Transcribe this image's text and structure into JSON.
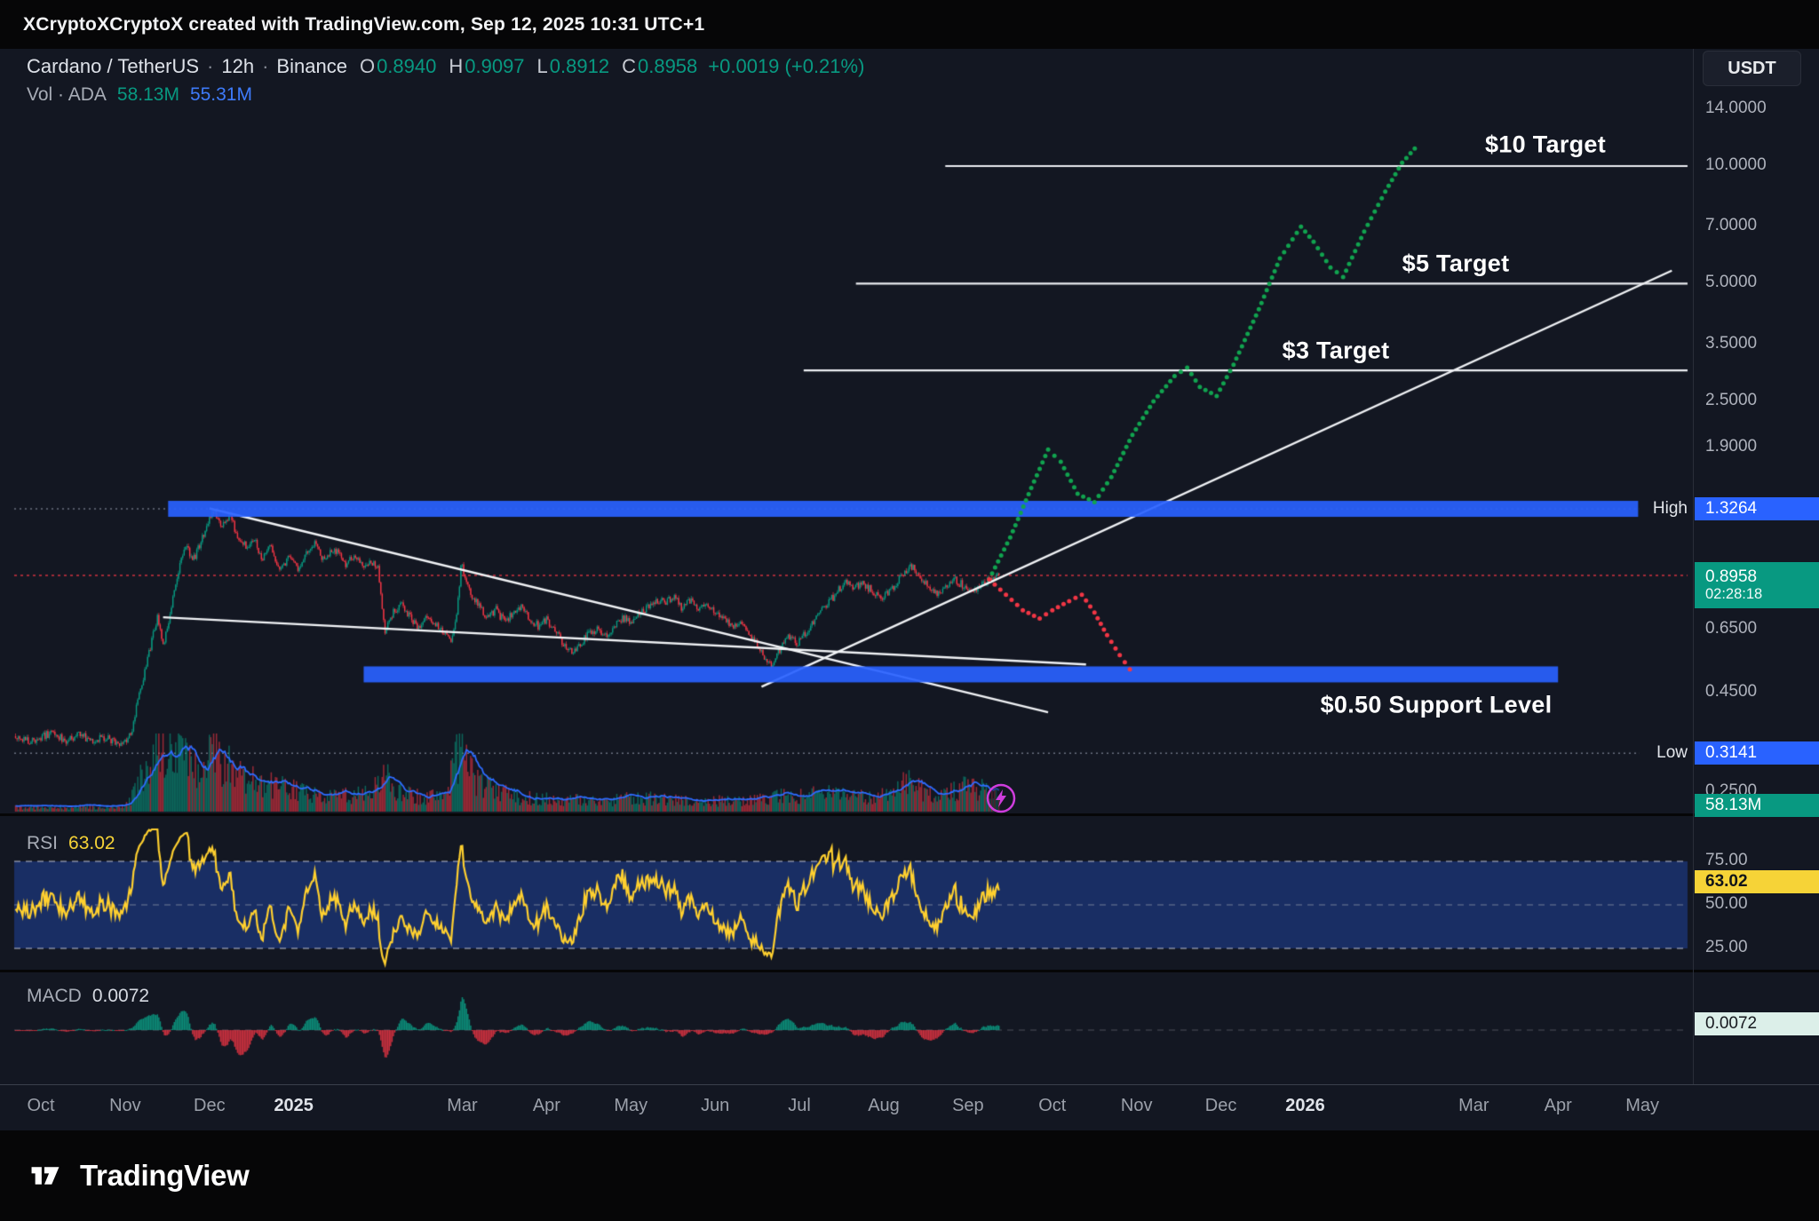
{
  "attribution": {
    "text": "XCryptoXCryptoX created with TradingView.com, Sep 12, 2025 10:31 UTC+1"
  },
  "header": {
    "symbol": "Cardano / TetherUS",
    "separator": "·",
    "interval": "12h",
    "exchange": "Binance",
    "ohlc": [
      {
        "label": "O",
        "value": "0.8940"
      },
      {
        "label": "H",
        "value": "0.9097"
      },
      {
        "label": "L",
        "value": "0.8912"
      },
      {
        "label": "C",
        "value": "0.8958"
      }
    ],
    "change": "+0.0019 (+0.21%)",
    "volume_label": "Vol · ADA",
    "volume_value": "58.13M",
    "volume_ma_value": "55.31M",
    "currency_button": "USDT"
  },
  "annotations": {
    "target_10": "$10 Target",
    "target_5": "$5 Target",
    "target_3": "$3 Target",
    "support": "$0.50 Support Level",
    "high_label": "High",
    "low_label": "Low"
  },
  "price_axis": {
    "plain": [
      {
        "text": "14.0000",
        "value": 14
      },
      {
        "text": "10.0000",
        "value": 10
      },
      {
        "text": "7.0000",
        "value": 7
      },
      {
        "text": "5.0000",
        "value": 5
      },
      {
        "text": "3.5000",
        "value": 3.5
      },
      {
        "text": "2.5000",
        "value": 2.5
      },
      {
        "text": "1.9000",
        "value": 1.9
      },
      {
        "text": "0.6500",
        "value": 0.65
      },
      {
        "text": "0.4500",
        "value": 0.45
      },
      {
        "text": "0.2500",
        "value": 0.25
      }
    ],
    "high_badge": {
      "text": "1.3264",
      "value": 1.3264
    },
    "low_badge": {
      "text": "0.3141",
      "value": 0.3141
    },
    "price_badge": {
      "text": "0.8958",
      "countdown": "02:28:18",
      "value": 0.8958
    },
    "volume_badge": {
      "text": "58.13M"
    }
  },
  "rsi_pane": {
    "title": "RSI",
    "value": "63.02",
    "badge": "63.02",
    "labels": [
      {
        "text": "75.00",
        "value": 75
      },
      {
        "text": "50.00",
        "value": 50
      },
      {
        "text": "25.00",
        "value": 25
      }
    ]
  },
  "macd_pane": {
    "title": "MACD",
    "value": "0.0072",
    "badge": "0.0072"
  },
  "time_axis": [
    {
      "label": "Oct",
      "m": 0
    },
    {
      "label": "Nov",
      "m": 1
    },
    {
      "label": "Dec",
      "m": 2
    },
    {
      "label": "2025",
      "m": 3,
      "bold": true
    },
    {
      "label": "Mar",
      "m": 5
    },
    {
      "label": "Apr",
      "m": 6
    },
    {
      "label": "May",
      "m": 7
    },
    {
      "label": "Jun",
      "m": 8
    },
    {
      "label": "Jul",
      "m": 9
    },
    {
      "label": "Aug",
      "m": 10
    },
    {
      "label": "Sep",
      "m": 11
    },
    {
      "label": "Oct",
      "m": 12
    },
    {
      "label": "Nov",
      "m": 13
    },
    {
      "label": "Dec",
      "m": 14
    },
    {
      "label": "2026",
      "m": 15,
      "bold": true
    },
    {
      "label": "Mar",
      "m": 17
    },
    {
      "label": "Apr",
      "m": 18
    },
    {
      "label": "May",
      "m": 19
    }
  ],
  "footer": {
    "brand": "TradingView"
  },
  "colors": {
    "up": "#089981",
    "down": "#f23645",
    "accent_blue": "#2962ff",
    "rsi_line": "#ffd02f",
    "bull_projection": "#11a34f",
    "bear_projection": "#f23645"
  },
  "chart_data": {
    "type": "candlestick",
    "title": "Cardano / TetherUS · 12h · Binance",
    "scale": "log",
    "current_ohlc": {
      "open": 0.894,
      "high": 0.9097,
      "low": 0.8912,
      "close": 0.8958,
      "change_abs": 0.0019,
      "change_pct": 0.21
    },
    "volume": {
      "current": "58.13M",
      "ma": "55.31M"
    },
    "key_levels": {
      "session_high": 1.3264,
      "session_low": 0.3141,
      "last_price": 0.8958,
      "support": 0.5,
      "targets": [
        3,
        5,
        10
      ]
    },
    "x_axis": {
      "unit": "months since Oct 2024",
      "visible_range": [
        -0.32,
        19.6
      ],
      "last_candle_m": 11.37
    },
    "y_axis": {
      "ticks": [
        14,
        10,
        7,
        5,
        3.5,
        2.5,
        1.9,
        0.65,
        0.45,
        0.25
      ]
    },
    "price_path": [
      [
        -0.9,
        0.355
      ],
      [
        -0.6,
        0.342
      ],
      [
        -0.35,
        0.352
      ],
      [
        -0.15,
        0.338
      ],
      [
        0,
        0.345
      ],
      [
        0.15,
        0.356
      ],
      [
        0.3,
        0.336
      ],
      [
        0.45,
        0.35
      ],
      [
        0.6,
        0.34
      ],
      [
        0.75,
        0.346
      ],
      [
        0.9,
        0.332
      ],
      [
        1,
        0.336
      ],
      [
        1.08,
        0.36
      ],
      [
        1.18,
        0.46
      ],
      [
        1.28,
        0.56
      ],
      [
        1.38,
        0.7
      ],
      [
        1.46,
        0.6
      ],
      [
        1.54,
        0.73
      ],
      [
        1.64,
        0.93
      ],
      [
        1.72,
        1.07
      ],
      [
        1.8,
        0.97
      ],
      [
        1.9,
        1.09
      ],
      [
        2,
        1.26
      ],
      [
        2.07,
        1.3
      ],
      [
        2.14,
        1.19
      ],
      [
        2.24,
        1.28
      ],
      [
        2.34,
        1.12
      ],
      [
        2.44,
        1.07
      ],
      [
        2.54,
        1.11
      ],
      [
        2.62,
        0.97
      ],
      [
        2.72,
        1.06
      ],
      [
        2.82,
        0.94
      ],
      [
        2.95,
        0.99
      ],
      [
        3.05,
        0.93
      ],
      [
        3.15,
        1.03
      ],
      [
        3.25,
        1.08
      ],
      [
        3.35,
        0.99
      ],
      [
        3.5,
        1.04
      ],
      [
        3.62,
        0.96
      ],
      [
        3.72,
        1.01
      ],
      [
        3.82,
        0.95
      ],
      [
        3.92,
        0.97
      ],
      [
        4,
        0.93
      ],
      [
        4.08,
        0.645
      ],
      [
        4.18,
        0.72
      ],
      [
        4.28,
        0.77
      ],
      [
        4.38,
        0.7
      ],
      [
        4.48,
        0.66
      ],
      [
        4.58,
        0.71
      ],
      [
        4.68,
        0.67
      ],
      [
        4.78,
        0.64
      ],
      [
        4.88,
        0.615
      ],
      [
        4.94,
        0.72
      ],
      [
        4.99,
        1.0
      ],
      [
        5.04,
        0.86
      ],
      [
        5.1,
        0.81
      ],
      [
        5.2,
        0.75
      ],
      [
        5.3,
        0.7
      ],
      [
        5.4,
        0.735
      ],
      [
        5.5,
        0.68
      ],
      [
        5.6,
        0.72
      ],
      [
        5.7,
        0.745
      ],
      [
        5.8,
        0.7
      ],
      [
        5.9,
        0.665
      ],
      [
        6,
        0.69
      ],
      [
        6.1,
        0.645
      ],
      [
        6.2,
        0.6
      ],
      [
        6.3,
        0.565
      ],
      [
        6.4,
        0.6
      ],
      [
        6.5,
        0.635
      ],
      [
        6.6,
        0.655
      ],
      [
        6.7,
        0.625
      ],
      [
        6.8,
        0.665
      ],
      [
        6.9,
        0.7
      ],
      [
        7,
        0.685
      ],
      [
        7.1,
        0.715
      ],
      [
        7.2,
        0.745
      ],
      [
        7.3,
        0.78
      ],
      [
        7.4,
        0.76
      ],
      [
        7.5,
        0.79
      ],
      [
        7.6,
        0.745
      ],
      [
        7.7,
        0.775
      ],
      [
        7.8,
        0.735
      ],
      [
        7.9,
        0.76
      ],
      [
        8,
        0.72
      ],
      [
        8.1,
        0.69
      ],
      [
        8.2,
        0.665
      ],
      [
        8.3,
        0.68
      ],
      [
        8.4,
        0.635
      ],
      [
        8.5,
        0.6
      ],
      [
        8.6,
        0.545
      ],
      [
        8.68,
        0.525
      ],
      [
        8.78,
        0.585
      ],
      [
        8.88,
        0.625
      ],
      [
        8.98,
        0.6
      ],
      [
        9.1,
        0.655
      ],
      [
        9.2,
        0.7
      ],
      [
        9.3,
        0.74
      ],
      [
        9.42,
        0.8
      ],
      [
        9.55,
        0.87
      ],
      [
        9.65,
        0.835
      ],
      [
        9.75,
        0.86
      ],
      [
        9.85,
        0.82
      ],
      [
        9.95,
        0.785
      ],
      [
        10.05,
        0.815
      ],
      [
        10.15,
        0.85
      ],
      [
        10.25,
        0.92
      ],
      [
        10.35,
        0.95
      ],
      [
        10.45,
        0.88
      ],
      [
        10.55,
        0.835
      ],
      [
        10.65,
        0.8
      ],
      [
        10.75,
        0.835
      ],
      [
        10.85,
        0.87
      ],
      [
        10.95,
        0.845
      ],
      [
        11.05,
        0.815
      ],
      [
        11.15,
        0.845
      ],
      [
        11.25,
        0.875
      ],
      [
        11.32,
        0.885
      ],
      [
        11.37,
        0.8958
      ]
    ],
    "volume_path": [
      [
        -0.9,
        0.05
      ],
      [
        0,
        0.055
      ],
      [
        0.9,
        0.05
      ],
      [
        1.05,
        0.12
      ],
      [
        1.2,
        0.5
      ],
      [
        1.35,
        0.85
      ],
      [
        1.5,
        0.95
      ],
      [
        1.65,
        0.7
      ],
      [
        1.8,
        0.55
      ],
      [
        1.95,
        0.6
      ],
      [
        2.1,
        0.8
      ],
      [
        2.25,
        0.55
      ],
      [
        2.4,
        0.45
      ],
      [
        2.6,
        0.38
      ],
      [
        2.8,
        0.32
      ],
      [
        3,
        0.28
      ],
      [
        3.3,
        0.22
      ],
      [
        3.6,
        0.2
      ],
      [
        3.9,
        0.22
      ],
      [
        4.08,
        0.5
      ],
      [
        4.2,
        0.28
      ],
      [
        4.5,
        0.18
      ],
      [
        4.8,
        0.2
      ],
      [
        4.99,
        0.9
      ],
      [
        5.15,
        0.45
      ],
      [
        5.4,
        0.25
      ],
      [
        5.7,
        0.18
      ],
      [
        6,
        0.16
      ],
      [
        6.3,
        0.15
      ],
      [
        6.6,
        0.13
      ],
      [
        6.9,
        0.16
      ],
      [
        7.2,
        0.17
      ],
      [
        7.5,
        0.15
      ],
      [
        7.8,
        0.13
      ],
      [
        8.1,
        0.14
      ],
      [
        8.4,
        0.16
      ],
      [
        8.7,
        0.2
      ],
      [
        9,
        0.2
      ],
      [
        9.3,
        0.26
      ],
      [
        9.6,
        0.22
      ],
      [
        9.9,
        0.18
      ],
      [
        10.1,
        0.22
      ],
      [
        10.3,
        0.42
      ],
      [
        10.5,
        0.24
      ],
      [
        10.7,
        0.2
      ],
      [
        10.9,
        0.28
      ],
      [
        11.1,
        0.33
      ],
      [
        11.25,
        0.24
      ],
      [
        11.37,
        0.18
      ]
    ],
    "projections": {
      "bullish": [
        [
          11.25,
          0.875
        ],
        [
          11.5,
          1.12
        ],
        [
          11.75,
          1.5
        ],
        [
          11.95,
          1.88
        ],
        [
          12.1,
          1.75
        ],
        [
          12.3,
          1.45
        ],
        [
          12.5,
          1.38
        ],
        [
          12.7,
          1.6
        ],
        [
          12.95,
          2.05
        ],
        [
          13.2,
          2.5
        ],
        [
          13.45,
          2.9
        ],
        [
          13.6,
          3.05
        ],
        [
          13.75,
          2.72
        ],
        [
          13.95,
          2.58
        ],
        [
          14.15,
          3.1
        ],
        [
          14.45,
          4.3
        ],
        [
          14.7,
          5.8
        ],
        [
          14.95,
          7.0
        ],
        [
          15.1,
          6.4
        ],
        [
          15.3,
          5.5
        ],
        [
          15.45,
          5.2
        ],
        [
          15.7,
          6.8
        ],
        [
          15.95,
          8.6
        ],
        [
          16.15,
          10.2
        ],
        [
          16.35,
          11.4
        ]
      ],
      "bearish": [
        [
          11.25,
          0.875
        ],
        [
          11.45,
          0.8
        ],
        [
          11.65,
          0.73
        ],
        [
          11.85,
          0.695
        ],
        [
          12,
          0.73
        ],
        [
          12.2,
          0.77
        ],
        [
          12.35,
          0.8
        ],
        [
          12.5,
          0.72
        ],
        [
          12.65,
          0.63
        ],
        [
          12.8,
          0.56
        ],
        [
          12.92,
          0.515
        ],
        [
          13,
          0.505
        ]
      ]
    },
    "trendlines": [
      {
        "from": [
          2.0,
          1.33
        ],
        "to": [
          11.95,
          0.4
        ]
      },
      {
        "from": [
          1.45,
          0.7
        ],
        "to": [
          12.4,
          0.53
        ]
      },
      {
        "from": [
          8.55,
          0.465
        ],
        "to": [
          19.35,
          5.4
        ]
      }
    ],
    "target_lines": [
      {
        "price": 10,
        "from_m": 10.73
      },
      {
        "price": 5,
        "from_m": 9.67
      },
      {
        "price": 3,
        "from_m": 9.05
      }
    ],
    "zones": [
      {
        "label": "High",
        "price": 1.3264,
        "from_m": 1.51,
        "to_m": 18.95
      },
      {
        "label": "$0.50 Support Level",
        "price": 0.5,
        "from_m": 3.83,
        "to_m": 18.0
      }
    ],
    "rsi": {
      "current": 63.02,
      "band": [
        25,
        75
      ],
      "mid": 50
    },
    "macd": {
      "current": 0.0072
    }
  }
}
